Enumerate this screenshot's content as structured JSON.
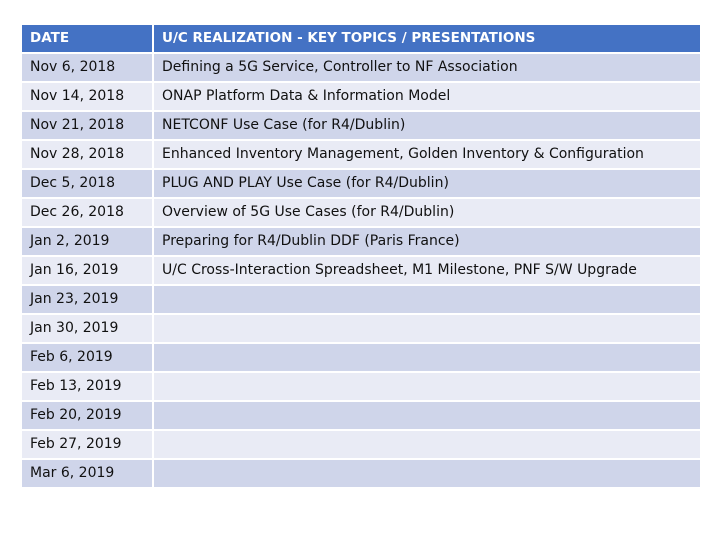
{
  "table": {
    "headers": [
      "DATE",
      "U/C REALIZATION - KEY TOPICS / PRESENTATIONS"
    ],
    "rows": [
      [
        "Nov 6, 2018",
        "Defining a 5G Service, Controller to NF Association"
      ],
      [
        "Nov 14, 2018",
        "ONAP Platform Data & Information Model"
      ],
      [
        "Nov 21, 2018",
        "NETCONF Use Case (for R4/Dublin)"
      ],
      [
        "Nov 28, 2018",
        "Enhanced Inventory Management, Golden Inventory & Configuration"
      ],
      [
        "Dec 5, 2018",
        "PLUG AND PLAY Use Case (for R4/Dublin)"
      ],
      [
        "Dec 26, 2018",
        "Overview of 5G Use Cases (for R4/Dublin)"
      ],
      [
        "Jan 2, 2019",
        "Preparing for R4/Dublin DDF (Paris France)"
      ],
      [
        "Jan 16, 2019",
        "U/C Cross-Interaction Spreadsheet, M1 Milestone, PNF S/W Upgrade"
      ],
      [
        "Jan 23, 2019",
        ""
      ],
      [
        "Jan 30, 2019",
        ""
      ],
      [
        "Feb 6, 2019",
        ""
      ],
      [
        "Feb 13, 2019",
        ""
      ],
      [
        "Feb 20, 2019",
        ""
      ],
      [
        "Feb 27, 2019",
        ""
      ],
      [
        "Mar 6, 2019",
        ""
      ]
    ]
  },
  "colors": {
    "header_bg": "#4472c4",
    "row_odd_bg": "#cfd5ea",
    "row_even_bg": "#e9ebf5"
  }
}
